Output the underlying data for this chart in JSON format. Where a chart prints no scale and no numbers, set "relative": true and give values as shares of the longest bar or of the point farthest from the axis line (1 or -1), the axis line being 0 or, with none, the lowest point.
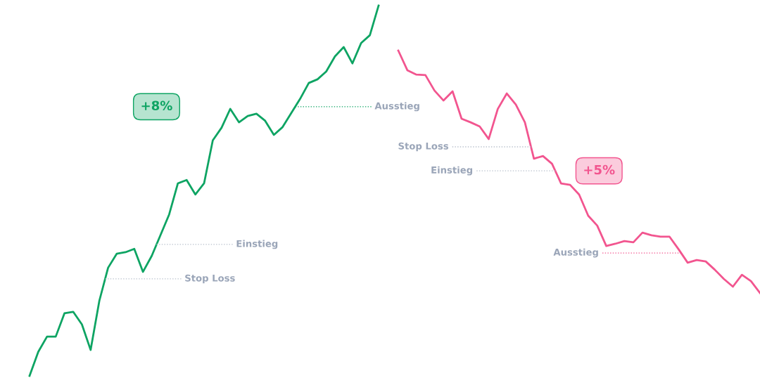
{
  "chart_data": [
    {
      "type": "line",
      "relative": true,
      "tick_labels": false,
      "grid": false,
      "categories": [
        null,
        null,
        null,
        null,
        null,
        null,
        null,
        null,
        null,
        null,
        null,
        null,
        null,
        null,
        null,
        null,
        null,
        null,
        null,
        null,
        null,
        null,
        null,
        null,
        null,
        null,
        null,
        null,
        null,
        null,
        null,
        null,
        null,
        null,
        null,
        null,
        null,
        null,
        null,
        null,
        null
      ],
      "series": [
        {
          "color": "#0ea463",
          "values": [
            0,
            0.065,
            0.106,
            0.106,
            0.169,
            0.173,
            0.139,
            0.07,
            0.203,
            0.292,
            0.33,
            0.334,
            0.343,
            0.281,
            0.324,
            0.38,
            0.436,
            0.52,
            0.529,
            0.49,
            0.52,
            0.636,
            0.67,
            0.721,
            0.685,
            0.702,
            0.708,
            0.689,
            0.651,
            0.672,
            0.71,
            0.748,
            0.791,
            0.801,
            0.822,
            0.863,
            0.888,
            0.844,
            0.899,
            0.92,
            1.0
          ]
        }
      ],
      "ref_lines": [
        {
          "axis": "y",
          "value": 0.727,
          "label": "Ausstieg",
          "color": "#0ea463",
          "line_style": "dotted"
        },
        {
          "axis": "y",
          "value": 0.355,
          "label": "Einstieg",
          "color": "#b8c0cc",
          "line_style": "dotted"
        },
        {
          "axis": "y",
          "value": 0.262,
          "label": "Stop Loss",
          "color": "#b8c0cc",
          "line_style": "dotted"
        }
      ],
      "annotations": [
        "+8%"
      ]
    },
    {
      "type": "line",
      "relative": true,
      "tick_labels": false,
      "grid": false,
      "categories": [
        null,
        null,
        null,
        null,
        null,
        null,
        null,
        null,
        null,
        null,
        null,
        null,
        null,
        null,
        null,
        null,
        null,
        null,
        null,
        null,
        null,
        null,
        null,
        null,
        null,
        null,
        null,
        null,
        null,
        null,
        null,
        null,
        null,
        null,
        null,
        null,
        null,
        null,
        null,
        null,
        null
      ],
      "series": [
        {
          "color": "#f2558f",
          "values": [
            1.0,
            0.919,
            0.901,
            0.899,
            0.835,
            0.794,
            0.832,
            0.719,
            0.704,
            0.687,
            0.635,
            0.759,
            0.823,
            0.777,
            0.704,
            0.554,
            0.565,
            0.533,
            0.452,
            0.446,
            0.406,
            0.319,
            0.278,
            0.194,
            0.203,
            0.214,
            0.209,
            0.249,
            0.238,
            0.232,
            0.232,
            0.18,
            0.125,
            0.136,
            0.13,
            0.096,
            0.058,
            0.026,
            0.075,
            0.049,
            0
          ]
        }
      ],
      "ref_lines": [
        {
          "axis": "y",
          "value": 0.603,
          "label": "Stop Loss",
          "color": "#b8c0cc",
          "line_style": "dotted"
        },
        {
          "axis": "y",
          "value": 0.504,
          "label": "Einstieg",
          "color": "#b8c0cc",
          "line_style": "dotted"
        },
        {
          "axis": "y",
          "value": 0.165,
          "label": "Ausstieg",
          "color": "#f2558f",
          "line_style": "dotted"
        }
      ],
      "annotations": [
        "+5%"
      ]
    }
  ]
}
